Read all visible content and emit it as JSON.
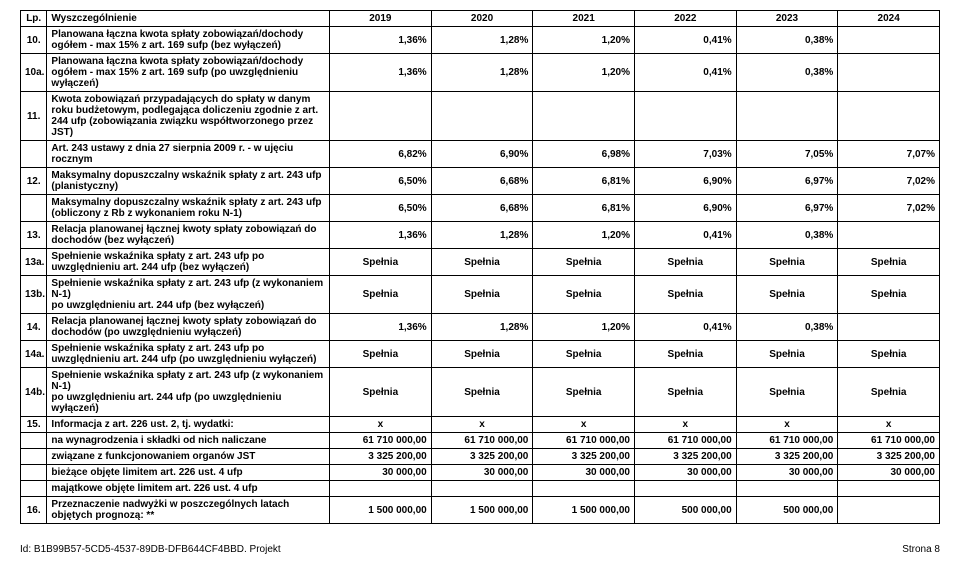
{
  "header": {
    "lp": "Lp.",
    "desc": "Wyszczególnienie",
    "y2019": "2019",
    "y2020": "2020",
    "y2021": "2021",
    "y2022": "2022",
    "y2023": "2023",
    "y2024": "2024"
  },
  "rows": [
    {
      "lp": "10.",
      "desc": "Planowana łączna kwota spłaty zobowiązań/dochody ogółem - max 15% z art. 169 sufp (bez wyłączeń)",
      "v": [
        "1,36%",
        "1,28%",
        "1,20%",
        "0,41%",
        "0,38%",
        ""
      ],
      "align": "right"
    },
    {
      "lp": "10a.",
      "desc": "Planowana łączna kwota spłaty zobowiązań/dochody ogółem - max 15% z art. 169 sufp (po uwzględnieniu wyłączeń)",
      "v": [
        "1,36%",
        "1,28%",
        "1,20%",
        "0,41%",
        "0,38%",
        ""
      ],
      "align": "right"
    },
    {
      "lp": "11.",
      "desc": "Kwota zobowiązań przypadających do spłaty w danym roku budżetowym, podlegająca doliczeniu zgodnie z art. 244 ufp (zobowiązania związku współtworzonego przez JST)",
      "v": [
        "",
        "",
        "",
        "",
        "",
        ""
      ],
      "align": "right"
    },
    {
      "lp": "",
      "desc": "Art. 243 ustawy z dnia 27 sierpnia 2009 r. - w ujęciu rocznym",
      "v": [
        "6,82%",
        "6,90%",
        "6,98%",
        "7,03%",
        "7,05%",
        "7,07%"
      ],
      "align": "right"
    },
    {
      "lp": "12.",
      "desc": "Maksymalny dopuszczalny wskaźnik spłaty z art. 243 ufp (planistyczny)",
      "v": [
        "6,50%",
        "6,68%",
        "6,81%",
        "6,90%",
        "6,97%",
        "7,02%"
      ],
      "align": "right"
    },
    {
      "lp": "",
      "desc": "Maksymalny dopuszczalny wskaźnik spłaty z art. 243 ufp (obliczony z Rb z wykonaniem roku N-1)",
      "v": [
        "6,50%",
        "6,68%",
        "6,81%",
        "6,90%",
        "6,97%",
        "7,02%"
      ],
      "align": "right"
    },
    {
      "lp": "13.",
      "desc": "Relacja planowanej łącznej kwoty spłaty zobowiązań do dochodów  (bez wyłączeń)",
      "v": [
        "1,36%",
        "1,28%",
        "1,20%",
        "0,41%",
        "0,38%",
        ""
      ],
      "align": "right"
    },
    {
      "lp": "13a.",
      "desc": "Spełnienie wskaźnika spłaty z art. 243 ufp po uwzględnieniu art. 244 ufp (bez wyłączeń)",
      "v": [
        "Spełnia",
        "Spełnia",
        "Spełnia",
        "Spełnia",
        "Spełnia",
        "Spełnia"
      ],
      "align": "center"
    },
    {
      "lp": "13b.",
      "desc": "Spełnienie wskaźnika spłaty z art. 243 ufp (z wykonaniem N-1)\npo uwzględnieniu art. 244 ufp (bez wyłączeń)",
      "v": [
        "Spełnia",
        "Spełnia",
        "Spełnia",
        "Spełnia",
        "Spełnia",
        "Spełnia"
      ],
      "align": "center"
    },
    {
      "lp": "14.",
      "desc": "Relacja planowanej łącznej kwoty spłaty zobowiązań do dochodów (po uwzględnieniu wyłączeń)",
      "v": [
        "1,36%",
        "1,28%",
        "1,20%",
        "0,41%",
        "0,38%",
        ""
      ],
      "align": "right"
    },
    {
      "lp": "14a.",
      "desc": "Spełnienie wskaźnika spłaty z art. 243 ufp po uwzględnieniu art. 244 ufp (po uwzględnieniu wyłączeń)",
      "v": [
        "Spełnia",
        "Spełnia",
        "Spełnia",
        "Spełnia",
        "Spełnia",
        "Spełnia"
      ],
      "align": "center"
    },
    {
      "lp": "14b.",
      "desc": "Spełnienie wskaźnika spłaty z art. 243 ufp (z wykonaniem N-1)\npo uwzględnieniu art. 244 ufp (po uwzględnieniu wyłączeń)",
      "v": [
        "Spełnia",
        "Spełnia",
        "Spełnia",
        "Spełnia",
        "Spełnia",
        "Spełnia"
      ],
      "align": "center"
    },
    {
      "lp": "15.",
      "desc": "Informacja z art. 226 ust. 2, tj. wydatki:",
      "v": [
        "x",
        "x",
        "x",
        "x",
        "x",
        "x"
      ],
      "align": "center"
    },
    {
      "lp": "",
      "desc": "na wynagrodzenia i składki od nich naliczane",
      "v": [
        "61 710 000,00",
        "61 710 000,00",
        "61 710 000,00",
        "61 710 000,00",
        "61 710 000,00",
        "61 710 000,00"
      ],
      "align": "right"
    },
    {
      "lp": "",
      "desc": "związane z funkcjonowaniem organów JST",
      "v": [
        "3 325 200,00",
        "3 325 200,00",
        "3 325 200,00",
        "3 325 200,00",
        "3 325 200,00",
        "3 325 200,00"
      ],
      "align": "right"
    },
    {
      "lp": "",
      "desc": "bieżące objęte limitem art. 226 ust. 4 ufp",
      "v": [
        "30 000,00",
        "30 000,00",
        "30 000,00",
        "30 000,00",
        "30 000,00",
        "30 000,00"
      ],
      "align": "right"
    },
    {
      "lp": "",
      "desc": "majątkowe objęte limitem art. 226 ust. 4 ufp",
      "v": [
        "",
        "",
        "",
        "",
        "",
        ""
      ],
      "align": "right"
    },
    {
      "lp": "16.",
      "desc": "Przeznaczenie nadwyżki w poszczególnych latach objętych prognozą: **",
      "v": [
        "1 500 000,00",
        "1 500 000,00",
        "1 500 000,00",
        "500 000,00",
        "500 000,00",
        ""
      ],
      "align": "right"
    }
  ],
  "footer": {
    "left": "Id: B1B99B57-5CD5-4537-89DB-DFB644CF4BBD. Projekt",
    "right": "Strona 8"
  }
}
